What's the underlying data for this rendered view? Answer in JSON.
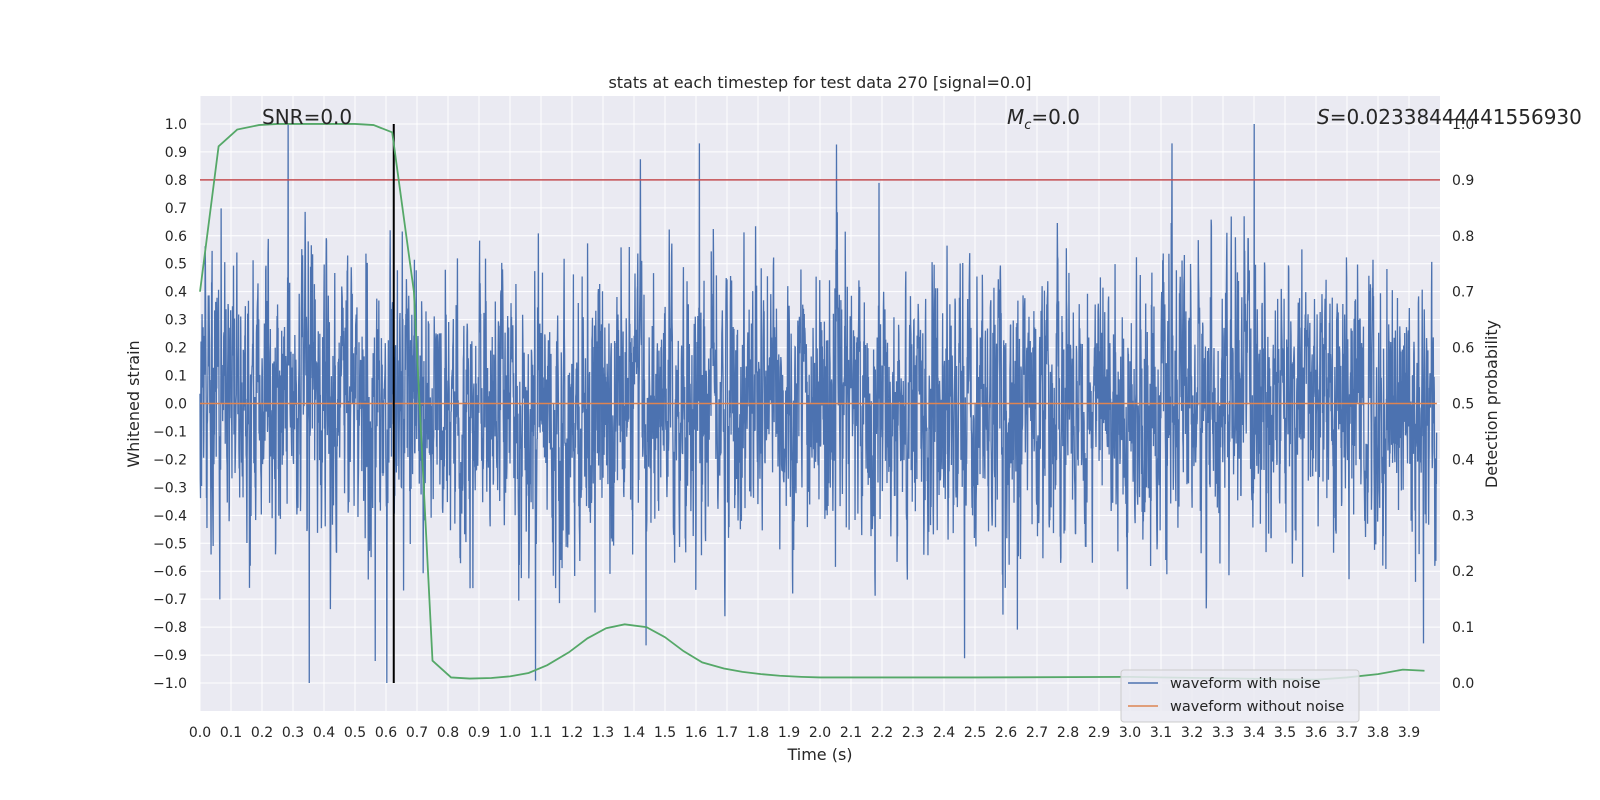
{
  "chart_data": {
    "type": "line",
    "title": "stats at each timestep for test data 270 [signal=0.0]",
    "xlabel": "Time (s)",
    "ylabel": "Whitened strain",
    "ylabel_right": "Detection probability",
    "xlim": [
      0.0,
      4.0
    ],
    "ylim": [
      -1.1,
      1.1
    ],
    "ylim_right": [
      -0.05,
      1.05
    ],
    "xticks": [
      "0.0",
      "0.1",
      "0.2",
      "0.3",
      "0.4",
      "0.5",
      "0.6",
      "0.7",
      "0.8",
      "0.9",
      "1.0",
      "1.1",
      "1.2",
      "1.3",
      "1.4",
      "1.5",
      "1.6",
      "1.7",
      "1.8",
      "1.9",
      "2.0",
      "2.1",
      "2.2",
      "2.3",
      "2.4",
      "2.5",
      "2.6",
      "2.7",
      "2.8",
      "2.9",
      "3.0",
      "3.1",
      "3.2",
      "3.3",
      "3.4",
      "3.5",
      "3.6",
      "3.7",
      "3.8",
      "3.9"
    ],
    "yticks": [
      "1.0",
      "0.9",
      "0.8",
      "0.7",
      "0.6",
      "0.5",
      "0.4",
      "0.3",
      "0.2",
      "0.1",
      "0.0",
      "−0.1",
      "−0.2",
      "−0.3",
      "−0.4",
      "−0.5",
      "−0.6",
      "−0.7",
      "−0.8",
      "−0.9",
      "−1.0"
    ],
    "yticks_right": [
      "1.0",
      "0.9",
      "0.8",
      "0.7",
      "0.6",
      "0.5",
      "0.4",
      "0.3",
      "0.2",
      "0.1",
      "0.0"
    ],
    "grid": true,
    "legend_placement": "lower-right",
    "colors": {
      "noise": "#4c72b0",
      "clean": "#dd8452",
      "probability": "#55a868",
      "threshold": "#c44e52",
      "marker": "#000000",
      "background": "#eaeaf2",
      "grid": "#ffffff"
    },
    "annotations": [
      {
        "prefix": "SNR",
        "value": "=0.0"
      },
      {
        "prefix": "M",
        "subscript": "c",
        "value": "=0.0"
      },
      {
        "prefix": "S",
        "value": "=0.02338444441556930"
      }
    ],
    "series": [
      {
        "name": "waveform with noise",
        "noise_amplitude": 0.2,
        "range": [
          -1.0,
          1.0
        ]
      },
      {
        "name": "waveform without noise",
        "constant": 0.0
      },
      {
        "axis": "right",
        "x": [
          0.0,
          0.06,
          0.12,
          0.19,
          0.25,
          0.31,
          0.37,
          0.44,
          0.5,
          0.56,
          0.62,
          0.69,
          0.75,
          0.81,
          0.87,
          0.94,
          1.0,
          1.06,
          1.12,
          1.19,
          1.25,
          1.31,
          1.37,
          1.44,
          1.5,
          1.56,
          1.62,
          1.69,
          1.75,
          1.81,
          1.87,
          1.94,
          2.0,
          2.5,
          3.0,
          3.6,
          3.7,
          3.8,
          3.88,
          3.95
        ],
        "y": [
          0.7,
          0.96,
          0.99,
          0.998,
          1.0,
          1.0,
          1.0,
          1.0,
          1.0,
          0.998,
          0.985,
          0.7,
          0.04,
          0.01,
          0.008,
          0.009,
          0.012,
          0.018,
          0.032,
          0.055,
          0.08,
          0.098,
          0.105,
          0.1,
          0.082,
          0.057,
          0.037,
          0.026,
          0.02,
          0.016,
          0.013,
          0.011,
          0.01,
          0.01,
          0.011,
          0.006,
          0.01,
          0.016,
          0.024,
          0.022
        ]
      }
    ],
    "threshold_line": {
      "axis": "right",
      "y": 0.9
    },
    "vertical_marker": {
      "x": 0.625,
      "ymin": -1.0,
      "ymax": 1.0
    }
  }
}
